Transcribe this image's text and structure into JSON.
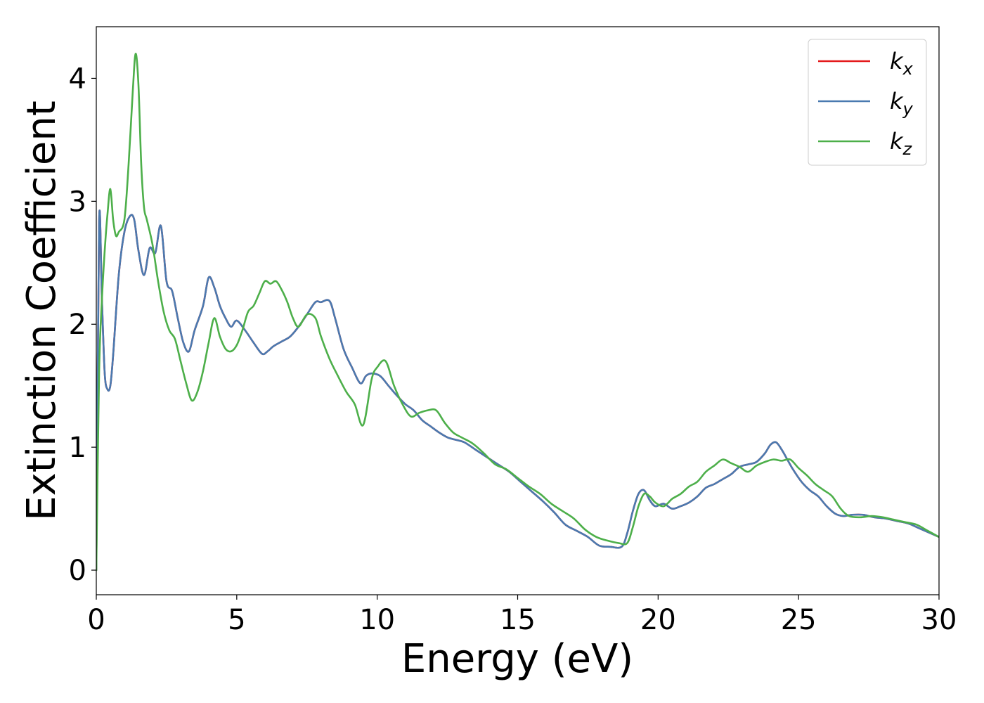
{
  "chart_data": {
    "type": "line",
    "title": "",
    "xlabel": "Energy (eV)",
    "ylabel": "Extinction Coefficient",
    "xlim": [
      0,
      30
    ],
    "ylim": [
      -0.2,
      4.42
    ],
    "xticks": [
      0,
      5,
      10,
      15,
      20,
      25,
      30
    ],
    "xtick_labels": [
      "0",
      "5",
      "10",
      "15",
      "20",
      "25",
      "30"
    ],
    "yticks": [
      0,
      1,
      2,
      3,
      4
    ],
    "ytick_labels": [
      "0",
      "1",
      "2",
      "3",
      "4"
    ],
    "grid": false,
    "legend_position": "top-right",
    "series": [
      {
        "name": "k_x",
        "label_main": "k",
        "label_sub": "x",
        "color": "#e41a1c",
        "x": [
          0,
          0.1,
          0.2,
          0.3,
          0.4,
          0.5,
          0.6,
          0.8,
          1.0,
          1.2,
          1.35,
          1.5,
          1.7,
          1.9,
          2.1,
          2.3,
          2.5,
          2.7,
          2.9,
          3.1,
          3.3,
          3.5,
          3.8,
          4.0,
          4.2,
          4.4,
          4.6,
          4.8,
          5.0,
          5.3,
          5.6,
          5.9,
          6.1,
          6.3,
          6.6,
          6.9,
          7.2,
          7.5,
          7.8,
          8.0,
          8.3,
          8.5,
          8.8,
          9.1,
          9.4,
          9.6,
          9.8,
          10.1,
          10.4,
          10.7,
          11.0,
          11.3,
          11.6,
          11.9,
          12.2,
          12.5,
          12.8,
          13.1,
          13.5,
          13.9,
          14.3,
          14.7,
          15.1,
          15.5,
          15.9,
          16.3,
          16.7,
          17.1,
          17.5,
          17.9,
          18.3,
          18.7,
          18.9,
          19.1,
          19.3,
          19.5,
          19.7,
          19.9,
          20.2,
          20.5,
          20.8,
          21.1,
          21.4,
          21.7,
          22.0,
          22.3,
          22.6,
          22.9,
          23.2,
          23.5,
          23.8,
          24.0,
          24.2,
          24.4,
          24.6,
          24.8,
          25.1,
          25.4,
          25.7,
          26.0,
          26.3,
          26.6,
          26.9,
          27.3,
          27.7,
          28.1,
          28.5,
          28.9,
          29.3,
          29.7,
          30.0
        ],
        "y": [
          0,
          2.83,
          2.2,
          1.6,
          1.47,
          1.5,
          1.75,
          2.4,
          2.75,
          2.88,
          2.85,
          2.6,
          2.4,
          2.62,
          2.58,
          2.8,
          2.35,
          2.27,
          2.05,
          1.85,
          1.78,
          1.95,
          2.15,
          2.38,
          2.3,
          2.15,
          2.05,
          1.98,
          2.03,
          1.95,
          1.85,
          1.76,
          1.78,
          1.82,
          1.86,
          1.9,
          1.98,
          2.08,
          2.18,
          2.18,
          2.19,
          2.05,
          1.8,
          1.65,
          1.52,
          1.58,
          1.6,
          1.58,
          1.5,
          1.42,
          1.35,
          1.3,
          1.22,
          1.17,
          1.12,
          1.08,
          1.06,
          1.04,
          0.98,
          0.92,
          0.86,
          0.8,
          0.72,
          0.64,
          0.56,
          0.47,
          0.37,
          0.32,
          0.27,
          0.2,
          0.19,
          0.19,
          0.3,
          0.48,
          0.62,
          0.65,
          0.57,
          0.52,
          0.54,
          0.5,
          0.52,
          0.55,
          0.6,
          0.67,
          0.7,
          0.74,
          0.78,
          0.84,
          0.86,
          0.88,
          0.95,
          1.02,
          1.04,
          0.98,
          0.9,
          0.82,
          0.72,
          0.65,
          0.6,
          0.52,
          0.46,
          0.44,
          0.45,
          0.45,
          0.43,
          0.42,
          0.4,
          0.38,
          0.34,
          0.3,
          0.27
        ]
      },
      {
        "name": "k_y",
        "label_main": "k",
        "label_sub": "y",
        "color": "#4a7ab0",
        "x": [
          0,
          0.1,
          0.2,
          0.3,
          0.4,
          0.5,
          0.6,
          0.8,
          1.0,
          1.2,
          1.35,
          1.5,
          1.7,
          1.9,
          2.1,
          2.3,
          2.5,
          2.7,
          2.9,
          3.1,
          3.3,
          3.5,
          3.8,
          4.0,
          4.2,
          4.4,
          4.6,
          4.8,
          5.0,
          5.3,
          5.6,
          5.9,
          6.1,
          6.3,
          6.6,
          6.9,
          7.2,
          7.5,
          7.8,
          8.0,
          8.3,
          8.5,
          8.8,
          9.1,
          9.4,
          9.6,
          9.8,
          10.1,
          10.4,
          10.7,
          11.0,
          11.3,
          11.6,
          11.9,
          12.2,
          12.5,
          12.8,
          13.1,
          13.5,
          13.9,
          14.3,
          14.7,
          15.1,
          15.5,
          15.9,
          16.3,
          16.7,
          17.1,
          17.5,
          17.9,
          18.3,
          18.7,
          18.9,
          19.1,
          19.3,
          19.5,
          19.7,
          19.9,
          20.2,
          20.5,
          20.8,
          21.1,
          21.4,
          21.7,
          22.0,
          22.3,
          22.6,
          22.9,
          23.2,
          23.5,
          23.8,
          24.0,
          24.2,
          24.4,
          24.6,
          24.8,
          25.1,
          25.4,
          25.7,
          26.0,
          26.3,
          26.6,
          26.9,
          27.3,
          27.7,
          28.1,
          28.5,
          28.9,
          29.3,
          29.7,
          30.0
        ],
        "y": [
          0,
          2.83,
          2.2,
          1.6,
          1.47,
          1.5,
          1.75,
          2.4,
          2.75,
          2.88,
          2.85,
          2.6,
          2.4,
          2.62,
          2.58,
          2.8,
          2.35,
          2.27,
          2.05,
          1.85,
          1.78,
          1.95,
          2.15,
          2.38,
          2.3,
          2.15,
          2.05,
          1.98,
          2.03,
          1.95,
          1.85,
          1.76,
          1.78,
          1.82,
          1.86,
          1.9,
          1.98,
          2.08,
          2.18,
          2.18,
          2.19,
          2.05,
          1.8,
          1.65,
          1.52,
          1.58,
          1.6,
          1.58,
          1.5,
          1.42,
          1.35,
          1.3,
          1.22,
          1.17,
          1.12,
          1.08,
          1.06,
          1.04,
          0.98,
          0.92,
          0.86,
          0.8,
          0.72,
          0.64,
          0.56,
          0.47,
          0.37,
          0.32,
          0.27,
          0.2,
          0.19,
          0.19,
          0.3,
          0.48,
          0.62,
          0.65,
          0.57,
          0.52,
          0.54,
          0.5,
          0.52,
          0.55,
          0.6,
          0.67,
          0.7,
          0.74,
          0.78,
          0.84,
          0.86,
          0.88,
          0.95,
          1.02,
          1.04,
          0.98,
          0.9,
          0.82,
          0.72,
          0.65,
          0.6,
          0.52,
          0.46,
          0.44,
          0.45,
          0.45,
          0.43,
          0.42,
          0.4,
          0.38,
          0.34,
          0.3,
          0.27
        ]
      },
      {
        "name": "k_z",
        "label_main": "k",
        "label_sub": "z",
        "color": "#4daf4a",
        "x": [
          0,
          0.1,
          0.2,
          0.3,
          0.4,
          0.5,
          0.6,
          0.7,
          0.8,
          1.0,
          1.15,
          1.3,
          1.4,
          1.5,
          1.6,
          1.7,
          1.8,
          2.0,
          2.2,
          2.4,
          2.6,
          2.8,
          3.0,
          3.2,
          3.4,
          3.6,
          3.8,
          4.0,
          4.2,
          4.4,
          4.6,
          4.8,
          5.0,
          5.2,
          5.4,
          5.6,
          5.8,
          6.0,
          6.2,
          6.4,
          6.6,
          6.8,
          7.0,
          7.2,
          7.5,
          7.8,
          8.0,
          8.3,
          8.6,
          8.9,
          9.2,
          9.5,
          9.8,
          10.0,
          10.3,
          10.6,
          10.9,
          11.2,
          11.5,
          11.8,
          12.1,
          12.4,
          12.7,
          13.0,
          13.4,
          13.8,
          14.2,
          14.6,
          15.0,
          15.4,
          15.8,
          16.2,
          16.6,
          17.0,
          17.4,
          17.8,
          18.2,
          18.6,
          18.9,
          19.1,
          19.3,
          19.5,
          19.7,
          19.9,
          20.2,
          20.5,
          20.8,
          21.1,
          21.4,
          21.7,
          22.0,
          22.3,
          22.6,
          22.9,
          23.2,
          23.5,
          23.8,
          24.1,
          24.4,
          24.7,
          25.0,
          25.3,
          25.6,
          25.9,
          26.2,
          26.5,
          26.8,
          27.2,
          27.6,
          28.0,
          28.4,
          28.8,
          29.2,
          29.6,
          30.0
        ],
        "y": [
          0,
          1.6,
          2.2,
          2.6,
          2.9,
          3.1,
          2.85,
          2.72,
          2.75,
          2.85,
          3.3,
          3.9,
          4.2,
          3.95,
          3.3,
          2.95,
          2.85,
          2.65,
          2.35,
          2.1,
          1.95,
          1.88,
          1.7,
          1.52,
          1.38,
          1.45,
          1.62,
          1.85,
          2.05,
          1.9,
          1.8,
          1.78,
          1.83,
          1.95,
          2.1,
          2.15,
          2.25,
          2.35,
          2.33,
          2.35,
          2.28,
          2.18,
          2.05,
          1.98,
          2.08,
          2.05,
          1.9,
          1.72,
          1.58,
          1.45,
          1.35,
          1.18,
          1.55,
          1.65,
          1.7,
          1.5,
          1.35,
          1.25,
          1.28,
          1.3,
          1.3,
          1.2,
          1.12,
          1.08,
          1.03,
          0.95,
          0.86,
          0.82,
          0.75,
          0.68,
          0.62,
          0.54,
          0.48,
          0.42,
          0.33,
          0.27,
          0.24,
          0.22,
          0.22,
          0.35,
          0.52,
          0.62,
          0.6,
          0.55,
          0.52,
          0.58,
          0.62,
          0.68,
          0.72,
          0.8,
          0.85,
          0.9,
          0.87,
          0.84,
          0.8,
          0.85,
          0.88,
          0.9,
          0.89,
          0.9,
          0.83,
          0.77,
          0.7,
          0.65,
          0.6,
          0.5,
          0.44,
          0.43,
          0.44,
          0.43,
          0.41,
          0.39,
          0.37,
          0.32,
          0.27
        ]
      }
    ]
  }
}
